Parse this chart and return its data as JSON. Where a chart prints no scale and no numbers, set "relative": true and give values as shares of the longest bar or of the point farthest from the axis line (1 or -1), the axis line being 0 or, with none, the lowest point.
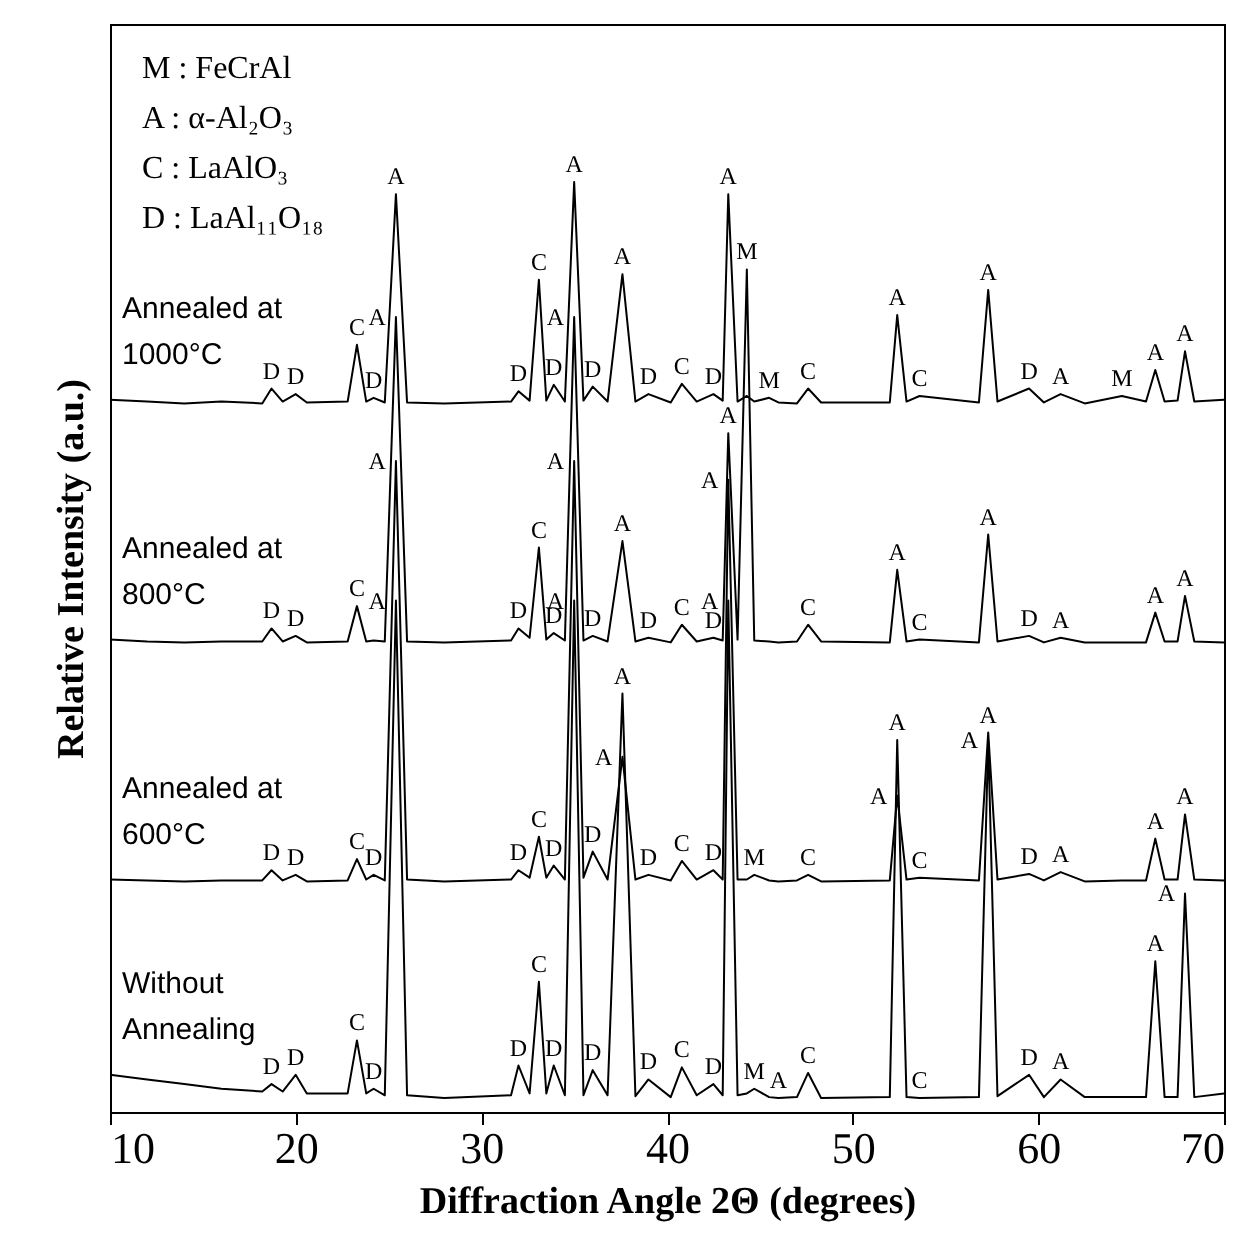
{
  "chart_data": {
    "type": "line",
    "relative": true,
    "xlabel": "Diffraction Angle 2Θ (degrees)",
    "ylabel": "Relative Intensity (a.u.)",
    "xlim": [
      10,
      70
    ],
    "xticks": [
      10,
      20,
      30,
      40,
      50,
      60,
      70
    ],
    "grid": false,
    "legend": false,
    "x": [
      10,
      12,
      14,
      16,
      18.2,
      18.7,
      19.3,
      20.0,
      20.6,
      22.8,
      23.3,
      23.8,
      24.2,
      24.8,
      25.4,
      26.0,
      28,
      31.6,
      32.0,
      32.6,
      33.1,
      33.5,
      33.9,
      34.5,
      35.0,
      35.5,
      36.0,
      36.8,
      37.6,
      38.3,
      39.0,
      40.2,
      40.8,
      41.6,
      42.5,
      43.0,
      43.3,
      43.8,
      44.3,
      44.7,
      45.5,
      46.0,
      47.0,
      47.6,
      48.3,
      52.0,
      52.4,
      52.9,
      53.6,
      56.8,
      57.3,
      57.8,
      59.5,
      60.3,
      61.2,
      62.5,
      64.5,
      65.8,
      66.3,
      66.8,
      67.5,
      67.9,
      68.4,
      70
    ],
    "series": [
      {
        "name": "Annealed at 1000°C",
        "color": "#000000",
        "values": [
          0.766,
          0.764,
          0.762,
          0.764,
          0.762,
          0.778,
          0.764,
          0.772,
          0.763,
          0.764,
          0.825,
          0.764,
          0.768,
          0.763,
          0.987,
          0.763,
          0.762,
          0.764,
          0.775,
          0.765,
          0.895,
          0.765,
          0.782,
          0.764,
          1.0,
          0.765,
          0.78,
          0.764,
          0.901,
          0.764,
          0.772,
          0.763,
          0.783,
          0.764,
          0.772,
          0.765,
          0.987,
          0.764,
          0.77,
          0.764,
          0.768,
          0.763,
          0.762,
          0.778,
          0.763,
          0.763,
          0.857,
          0.764,
          0.77,
          0.763,
          0.884,
          0.764,
          0.778,
          0.763,
          0.772,
          0.762,
          0.77,
          0.764,
          0.798,
          0.764,
          0.765,
          0.818,
          0.764,
          0.766
        ]
      },
      {
        "name": "Annealed at 800°C",
        "color": "#000000",
        "values": [
          0.508,
          0.506,
          0.505,
          0.506,
          0.506,
          0.52,
          0.506,
          0.512,
          0.505,
          0.506,
          0.544,
          0.506,
          0.507,
          0.506,
          0.855,
          0.506,
          0.505,
          0.507,
          0.52,
          0.51,
          0.607,
          0.508,
          0.515,
          0.507,
          0.855,
          0.507,
          0.512,
          0.506,
          0.614,
          0.506,
          0.51,
          0.505,
          0.524,
          0.506,
          0.51,
          0.507,
          0.73,
          0.508,
          0.906,
          0.507,
          0.506,
          0.505,
          0.506,
          0.524,
          0.506,
          0.505,
          0.583,
          0.506,
          0.508,
          0.505,
          0.621,
          0.506,
          0.512,
          0.505,
          0.51,
          0.505,
          0.505,
          0.505,
          0.537,
          0.506,
          0.506,
          0.555,
          0.506,
          0.505
        ]
      },
      {
        "name": "Annealed at 600°C",
        "color": "#000000",
        "values": [
          0.25,
          0.249,
          0.248,
          0.249,
          0.249,
          0.26,
          0.249,
          0.255,
          0.248,
          0.249,
          0.272,
          0.25,
          0.255,
          0.249,
          0.7,
          0.25,
          0.248,
          0.25,
          0.26,
          0.252,
          0.296,
          0.252,
          0.265,
          0.25,
          0.7,
          0.252,
          0.28,
          0.25,
          0.382,
          0.25,
          0.255,
          0.249,
          0.27,
          0.25,
          0.26,
          0.25,
          0.68,
          0.25,
          0.25,
          0.255,
          0.249,
          0.248,
          0.249,
          0.255,
          0.248,
          0.249,
          0.34,
          0.25,
          0.252,
          0.249,
          0.408,
          0.25,
          0.256,
          0.249,
          0.258,
          0.248,
          0.249,
          0.249,
          0.294,
          0.25,
          0.25,
          0.32,
          0.25,
          0.249
        ]
      },
      {
        "name": "Without Annealing",
        "color": "#000000",
        "values": [
          0.04,
          0.035,
          0.03,
          0.025,
          0.022,
          0.03,
          0.022,
          0.04,
          0.02,
          0.02,
          0.077,
          0.02,
          0.025,
          0.018,
          0.55,
          0.018,
          0.015,
          0.018,
          0.05,
          0.02,
          0.14,
          0.02,
          0.05,
          0.018,
          0.55,
          0.018,
          0.045,
          0.018,
          0.45,
          0.017,
          0.035,
          0.016,
          0.048,
          0.018,
          0.03,
          0.018,
          0.55,
          0.018,
          0.02,
          0.025,
          0.016,
          0.015,
          0.016,
          0.042,
          0.015,
          0.016,
          0.4,
          0.016,
          0.015,
          0.016,
          0.4,
          0.017,
          0.04,
          0.016,
          0.035,
          0.016,
          0.016,
          0.016,
          0.162,
          0.016,
          0.016,
          0.235,
          0.016,
          0.02
        ]
      }
    ],
    "annotations": [
      "M : FeCrAl",
      "A : α-Al₂O₃",
      "C : LaAlO₃",
      "D : LaAl₁₁O₁₈",
      {
        "text": "D",
        "x": 18.7,
        "y": 0.778
      },
      {
        "text": "D",
        "x": 20.0,
        "y": 0.772
      },
      {
        "text": "C",
        "x": 23.3,
        "y": 0.825
      },
      {
        "text": "D",
        "x": 24.2,
        "y": 0.768
      },
      {
        "text": "A",
        "x": 25.4,
        "y": 0.987
      },
      {
        "text": "D",
        "x": 32.0,
        "y": 0.775
      },
      {
        "text": "C",
        "x": 33.1,
        "y": 0.895
      },
      {
        "text": "D",
        "x": 33.9,
        "y": 0.782
      },
      {
        "text": "A",
        "x": 35.0,
        "y": 1.0
      },
      {
        "text": "D",
        "x": 36.0,
        "y": 0.78
      },
      {
        "text": "A",
        "x": 37.6,
        "y": 0.901
      },
      {
        "text": "D",
        "x": 39.0,
        "y": 0.772
      },
      {
        "text": "C",
        "x": 40.8,
        "y": 0.783
      },
      {
        "text": "D",
        "x": 42.5,
        "y": 0.772
      },
      {
        "text": "A",
        "x": 43.3,
        "y": 0.987
      },
      {
        "text": "M",
        "x": 45.5,
        "y": 0.768
      },
      {
        "text": "C",
        "x": 47.6,
        "y": 0.778
      },
      {
        "text": "A",
        "x": 52.4,
        "y": 0.857
      },
      {
        "text": "C",
        "x": 53.6,
        "y": 0.77
      },
      {
        "text": "A",
        "x": 57.3,
        "y": 0.884
      },
      {
        "text": "D",
        "x": 59.5,
        "y": 0.778
      },
      {
        "text": "A",
        "x": 61.2,
        "y": 0.772
      },
      {
        "text": "M",
        "x": 64.5,
        "y": 0.77
      },
      {
        "text": "A",
        "x": 66.3,
        "y": 0.798
      },
      {
        "text": "A",
        "x": 67.9,
        "y": 0.818
      },
      {
        "text": "D",
        "x": 18.7,
        "y": 0.52
      },
      {
        "text": "D",
        "x": 20.0,
        "y": 0.512
      },
      {
        "text": "C",
        "x": 23.3,
        "y": 0.544
      },
      {
        "text": "A",
        "x": 25.4,
        "y": 0.855
      },
      {
        "text": "D",
        "x": 32.0,
        "y": 0.52
      },
      {
        "text": "C",
        "x": 33.1,
        "y": 0.607
      },
      {
        "text": "D",
        "x": 33.9,
        "y": 0.515
      },
      {
        "text": "A",
        "x": 35.0,
        "y": 0.855
      },
      {
        "text": "D",
        "x": 36.0,
        "y": 0.512
      },
      {
        "text": "A",
        "x": 37.6,
        "y": 0.614
      },
      {
        "text": "D",
        "x": 39.0,
        "y": 0.51
      },
      {
        "text": "C",
        "x": 40.8,
        "y": 0.524
      },
      {
        "text": "D",
        "x": 42.5,
        "y": 0.51
      },
      {
        "text": "A",
        "x": 43.3,
        "y": 0.73
      },
      {
        "text": "M",
        "x": 44.3,
        "y": 0.906
      },
      {
        "text": "C",
        "x": 47.6,
        "y": 0.524
      },
      {
        "text": "A",
        "x": 52.4,
        "y": 0.583
      },
      {
        "text": "C",
        "x": 53.6,
        "y": 0.508
      },
      {
        "text": "A",
        "x": 57.3,
        "y": 0.621
      },
      {
        "text": "D",
        "x": 59.5,
        "y": 0.512
      },
      {
        "text": "A",
        "x": 61.2,
        "y": 0.51
      },
      {
        "text": "A",
        "x": 66.3,
        "y": 0.537
      },
      {
        "text": "A",
        "x": 67.9,
        "y": 0.555
      },
      {
        "text": "D",
        "x": 18.7,
        "y": 0.26
      },
      {
        "text": "D",
        "x": 20.0,
        "y": 0.255
      },
      {
        "text": "C",
        "x": 23.3,
        "y": 0.272
      },
      {
        "text": "D",
        "x": 24.2,
        "y": 0.255
      },
      {
        "text": "A",
        "x": 25.4,
        "y": 0.7
      },
      {
        "text": "D",
        "x": 32.0,
        "y": 0.26
      },
      {
        "text": "C",
        "x": 33.1,
        "y": 0.296
      },
      {
        "text": "D",
        "x": 33.9,
        "y": 0.265
      },
      {
        "text": "A",
        "x": 35.0,
        "y": 0.7
      },
      {
        "text": "D",
        "x": 36.0,
        "y": 0.28
      },
      {
        "text": "A",
        "x": 37.6,
        "y": 0.382
      },
      {
        "text": "D",
        "x": 39.0,
        "y": 0.255
      },
      {
        "text": "C",
        "x": 40.8,
        "y": 0.27
      },
      {
        "text": "D",
        "x": 42.5,
        "y": 0.26
      },
      {
        "text": "A",
        "x": 43.3,
        "y": 0.68
      },
      {
        "text": "M",
        "x": 44.7,
        "y": 0.255
      },
      {
        "text": "C",
        "x": 47.6,
        "y": 0.255
      },
      {
        "text": "A",
        "x": 52.4,
        "y": 0.34
      },
      {
        "text": "C",
        "x": 53.6,
        "y": 0.252
      },
      {
        "text": "A",
        "x": 57.3,
        "y": 0.408
      },
      {
        "text": "D",
        "x": 59.5,
        "y": 0.256
      },
      {
        "text": "A",
        "x": 61.2,
        "y": 0.258
      },
      {
        "text": "A",
        "x": 66.3,
        "y": 0.294
      },
      {
        "text": "A",
        "x": 67.9,
        "y": 0.32
      },
      {
        "text": "D",
        "x": 18.7,
        "y": 0.03
      },
      {
        "text": "D",
        "x": 20.0,
        "y": 0.04
      },
      {
        "text": "C",
        "x": 23.3,
        "y": 0.077
      },
      {
        "text": "D",
        "x": 24.2,
        "y": 0.025
      },
      {
        "text": "A",
        "x": 25.4,
        "y": 0.55
      },
      {
        "text": "D",
        "x": 32.0,
        "y": 0.05
      },
      {
        "text": "C",
        "x": 33.1,
        "y": 0.14
      },
      {
        "text": "D",
        "x": 33.9,
        "y": 0.05
      },
      {
        "text": "A",
        "x": 35.0,
        "y": 0.55
      },
      {
        "text": "D",
        "x": 36.0,
        "y": 0.045
      },
      {
        "text": "A",
        "x": 37.6,
        "y": 0.45
      },
      {
        "text": "D",
        "x": 39.0,
        "y": 0.035
      },
      {
        "text": "C",
        "x": 40.8,
        "y": 0.048
      },
      {
        "text": "D",
        "x": 42.5,
        "y": 0.03
      },
      {
        "text": "A",
        "x": 43.3,
        "y": 0.55
      },
      {
        "text": "M",
        "x": 44.7,
        "y": 0.025
      },
      {
        "text": "A",
        "x": 46.0,
        "y": 0.015
      },
      {
        "text": "C",
        "x": 47.6,
        "y": 0.042
      },
      {
        "text": "A",
        "x": 52.4,
        "y": 0.4
      },
      {
        "text": "C",
        "x": 53.6,
        "y": 0.015
      },
      {
        "text": "A",
        "x": 57.3,
        "y": 0.4
      },
      {
        "text": "D",
        "x": 59.5,
        "y": 0.04
      },
      {
        "text": "A",
        "x": 61.2,
        "y": 0.035
      },
      {
        "text": "A",
        "x": 66.3,
        "y": 0.162
      },
      {
        "text": "A",
        "x": 67.9,
        "y": 0.235
      }
    ]
  }
}
